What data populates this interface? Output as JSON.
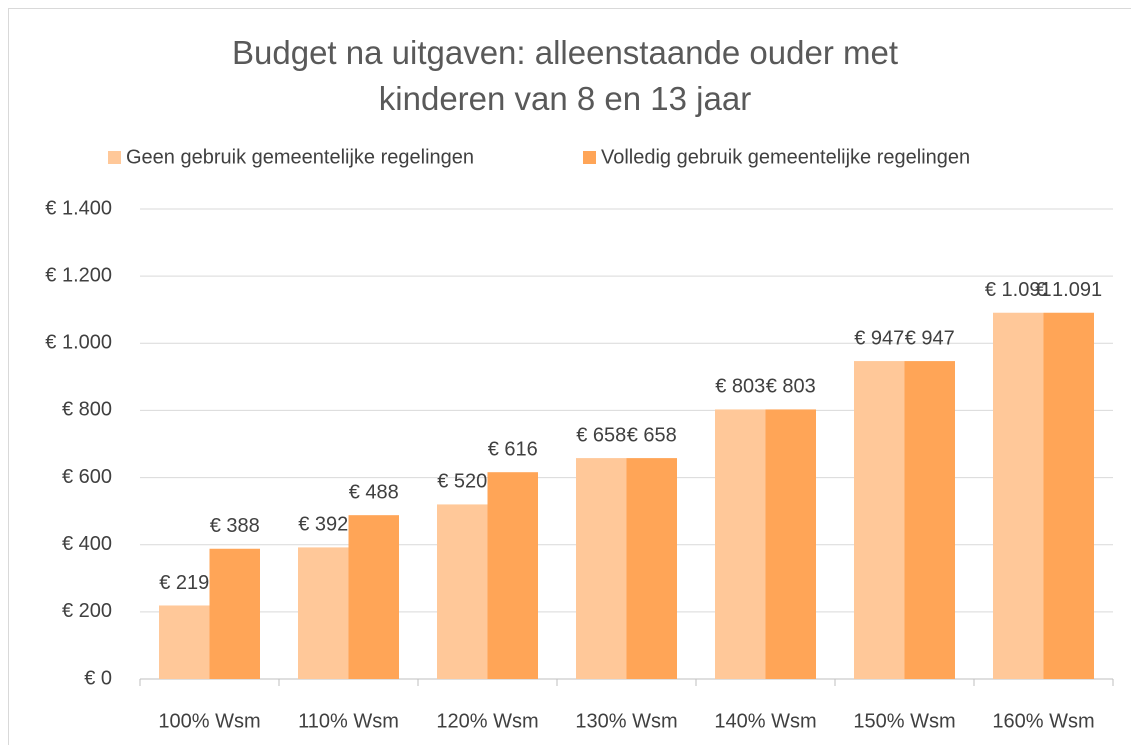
{
  "chart_data": {
    "type": "bar",
    "title": "Budget na uitgaven: alleenstaande ouder met kinderen van 8 en 13 jaar",
    "categories": [
      "100% Wsm",
      "110% Wsm",
      "120% Wsm",
      "130% Wsm",
      "140% Wsm",
      "150% Wsm",
      "160% Wsm"
    ],
    "series": [
      {
        "name": "Geen gebruik gemeentelijke regelingen",
        "color": "#ffc899",
        "values": [
          219,
          392,
          520,
          658,
          803,
          947,
          1091
        ],
        "value_labels": [
          "€ 219",
          "€ 392",
          "€ 520",
          "€ 658",
          "€ 803",
          "€ 947",
          "€ 1.091"
        ]
      },
      {
        "name": "Volledig gebruik gemeentelijke regelingen",
        "color": "#ffa557",
        "values": [
          388,
          488,
          616,
          658,
          803,
          947,
          1091
        ],
        "value_labels": [
          "€ 388",
          "€ 488",
          "€ 616",
          "€ 658",
          "€ 803",
          "€ 947",
          "€ 1.091"
        ]
      }
    ],
    "ylim": [
      0,
      1400
    ],
    "yticks": [
      {
        "value": 0,
        "label": "€ 0"
      },
      {
        "value": 200,
        "label": "€ 200"
      },
      {
        "value": 400,
        "label": "€ 400"
      },
      {
        "value": 600,
        "label": "€ 600"
      },
      {
        "value": 800,
        "label": "€ 800"
      },
      {
        "value": 1000,
        "label": "€ 1.000"
      },
      {
        "value": 1200,
        "label": "€ 1.200"
      },
      {
        "value": 1400,
        "label": "€ 1.400"
      }
    ],
    "grid": true,
    "legend": "top"
  }
}
